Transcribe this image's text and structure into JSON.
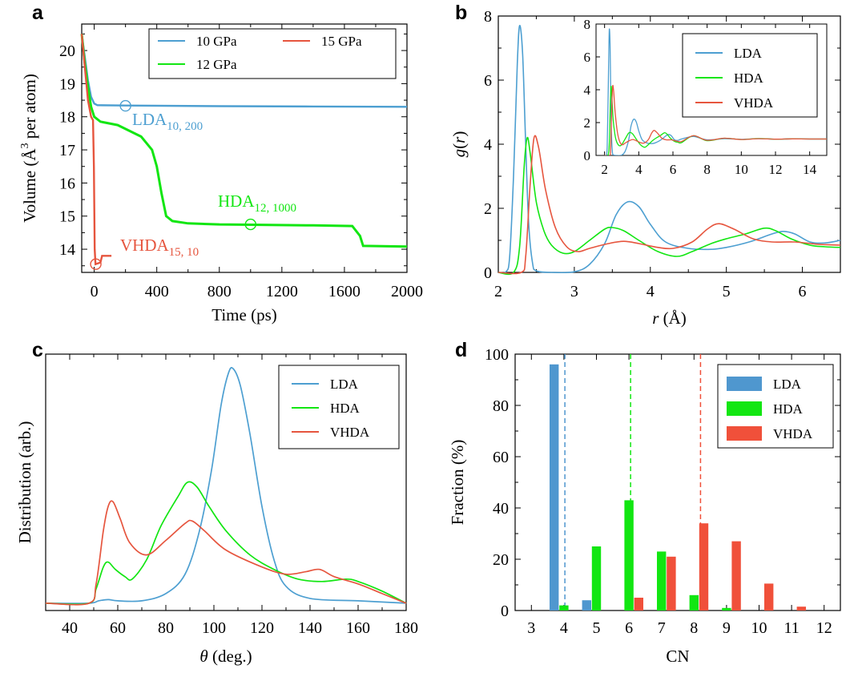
{
  "colors": {
    "blue": "#4d9fd1",
    "green": "#12e612",
    "red": "#e6553e",
    "red_bar": "#f0503a",
    "blue_bar": "#4f97cf"
  },
  "panels": {
    "a": {
      "letter": "a"
    },
    "b": {
      "letter": "b"
    },
    "c": {
      "letter": "c"
    },
    "d": {
      "letter": "d"
    }
  },
  "chart_data": [
    {
      "panel": "a",
      "type": "line",
      "xlabel": "Time (ps)",
      "ylabel_main": "Volume (Å",
      "ylabel_sup": "3",
      "ylabel_tail": " per atom)",
      "xlim": [
        -80,
        2000
      ],
      "ylim": [
        13.3,
        20.8
      ],
      "xticks": [
        0,
        400,
        800,
        1200,
        1600,
        2000
      ],
      "yticks": [
        14,
        15,
        16,
        17,
        18,
        19,
        20
      ],
      "legend": {
        "placement": "top-right",
        "columns": 2
      },
      "series": [
        {
          "name": "10 GPa",
          "color": "blue",
          "points": [
            [
              -80,
              20.5
            ],
            [
              -60,
              19.8
            ],
            [
              -40,
              19.1
            ],
            [
              -20,
              18.6
            ],
            [
              0,
              18.4
            ],
            [
              20,
              18.35
            ],
            [
              200,
              18.34
            ],
            [
              800,
              18.32
            ],
            [
              1400,
              18.31
            ],
            [
              2000,
              18.3
            ]
          ]
        },
        {
          "name": "12 GPa",
          "color": "green",
          "points": [
            [
              -80,
              20.5
            ],
            [
              -60,
              19.6
            ],
            [
              -40,
              18.9
            ],
            [
              -20,
              18.3
            ],
            [
              0,
              18.0
            ],
            [
              40,
              17.85
            ],
            [
              150,
              17.75
            ],
            [
              300,
              17.4
            ],
            [
              370,
              17.0
            ],
            [
              400,
              16.5
            ],
            [
              430,
              15.7
            ],
            [
              460,
              15.0
            ],
            [
              500,
              14.85
            ],
            [
              600,
              14.78
            ],
            [
              800,
              14.75
            ],
            [
              1000,
              14.74
            ],
            [
              1400,
              14.72
            ],
            [
              1650,
              14.7
            ],
            [
              1700,
              14.4
            ],
            [
              1720,
              14.1
            ],
            [
              2000,
              14.08
            ]
          ]
        },
        {
          "name": "15 GPa",
          "color": "red",
          "points": [
            [
              -80,
              20.5
            ],
            [
              -60,
              19.5
            ],
            [
              -40,
              18.5
            ],
            [
              -20,
              18.0
            ],
            [
              -8,
              17.9
            ],
            [
              -2,
              16.5
            ],
            [
              3,
              14.0
            ],
            [
              8,
              13.55
            ],
            [
              40,
              13.6
            ],
            [
              50,
              13.8
            ],
            [
              110,
              13.8
            ]
          ]
        }
      ],
      "annotations": [
        {
          "label": "LDA",
          "sub": "10, 200",
          "color": "blue",
          "x": 200,
          "y": 18.33
        },
        {
          "label": "HDA",
          "sub": "12, 1000",
          "color": "green",
          "x": 1000,
          "y": 14.75
        },
        {
          "label": "VHDA",
          "sub": "15, 10",
          "color": "red",
          "x": 10,
          "y": 13.55
        }
      ]
    },
    {
      "panel": "b",
      "type": "line",
      "xlabel_italic": "r",
      "xlabel_tail": " (Å)",
      "ylabel_italic": "g",
      "ylabel_paren_open": "(",
      "ylabel_italic_r": "r",
      "ylabel_paren_close": ")",
      "xlim": [
        2.0,
        6.5
      ],
      "ylim": [
        0,
        8
      ],
      "xticks": [
        2,
        3,
        4,
        5,
        6
      ],
      "yticks": [
        0,
        2,
        4,
        6,
        8
      ],
      "legend": {
        "placement": "top-right (inside inset)"
      },
      "series": [
        {
          "name": "LDA",
          "color": "blue",
          "points": [
            [
              2.0,
              0
            ],
            [
              2.1,
              0.02
            ],
            [
              2.15,
              0.5
            ],
            [
              2.2,
              3.0
            ],
            [
              2.25,
              6.5
            ],
            [
              2.28,
              7.7
            ],
            [
              2.32,
              6.8
            ],
            [
              2.36,
              4.0
            ],
            [
              2.4,
              1.5
            ],
            [
              2.45,
              0.3
            ],
            [
              2.5,
              0.05
            ],
            [
              2.7,
              0.0
            ],
            [
              3.0,
              0.02
            ],
            [
              3.2,
              0.25
            ],
            [
              3.4,
              0.9
            ],
            [
              3.55,
              1.8
            ],
            [
              3.7,
              2.2
            ],
            [
              3.85,
              2.05
            ],
            [
              4.0,
              1.5
            ],
            [
              4.2,
              0.95
            ],
            [
              4.5,
              0.75
            ],
            [
              4.8,
              0.72
            ],
            [
              5.0,
              0.78
            ],
            [
              5.3,
              0.95
            ],
            [
              5.6,
              1.2
            ],
            [
              5.75,
              1.28
            ],
            [
              5.9,
              1.2
            ],
            [
              6.1,
              0.95
            ],
            [
              6.3,
              0.92
            ],
            [
              6.5,
              1.0
            ]
          ]
        },
        {
          "name": "HDA",
          "color": "green",
          "points": [
            [
              2.0,
              0
            ],
            [
              2.2,
              0.0
            ],
            [
              2.28,
              0.8
            ],
            [
              2.34,
              3.3
            ],
            [
              2.38,
              4.2
            ],
            [
              2.42,
              3.7
            ],
            [
              2.5,
              2.2
            ],
            [
              2.6,
              1.3
            ],
            [
              2.7,
              0.85
            ],
            [
              2.85,
              0.6
            ],
            [
              3.0,
              0.65
            ],
            [
              3.2,
              1.0
            ],
            [
              3.4,
              1.35
            ],
            [
              3.5,
              1.4
            ],
            [
              3.65,
              1.3
            ],
            [
              3.85,
              1.0
            ],
            [
              4.1,
              0.65
            ],
            [
              4.35,
              0.5
            ],
            [
              4.55,
              0.65
            ],
            [
              4.8,
              0.9
            ],
            [
              5.0,
              1.05
            ],
            [
              5.25,
              1.2
            ],
            [
              5.5,
              1.38
            ],
            [
              5.65,
              1.3
            ],
            [
              5.85,
              1.05
            ],
            [
              6.1,
              0.85
            ],
            [
              6.3,
              0.8
            ],
            [
              6.5,
              0.78
            ]
          ]
        },
        {
          "name": "VHDA",
          "color": "red",
          "points": [
            [
              2.0,
              0
            ],
            [
              2.3,
              0.0
            ],
            [
              2.36,
              0.5
            ],
            [
              2.42,
              2.8
            ],
            [
              2.47,
              4.2
            ],
            [
              2.53,
              3.9
            ],
            [
              2.62,
              2.6
            ],
            [
              2.75,
              1.4
            ],
            [
              2.9,
              0.8
            ],
            [
              3.05,
              0.65
            ],
            [
              3.2,
              0.75
            ],
            [
              3.45,
              0.9
            ],
            [
              3.65,
              0.97
            ],
            [
              3.85,
              0.9
            ],
            [
              4.1,
              0.78
            ],
            [
              4.3,
              0.75
            ],
            [
              4.55,
              0.95
            ],
            [
              4.75,
              1.35
            ],
            [
              4.9,
              1.52
            ],
            [
              5.1,
              1.35
            ],
            [
              5.35,
              1.05
            ],
            [
              5.6,
              0.95
            ],
            [
              5.9,
              0.95
            ],
            [
              6.2,
              0.88
            ],
            [
              6.5,
              0.85
            ]
          ]
        }
      ],
      "inset": {
        "xlim": [
          1.5,
          15.0
        ],
        "ylim": [
          0,
          8
        ],
        "xticks": [
          2,
          4,
          6,
          8,
          10,
          12,
          14
        ],
        "yticks": [
          0,
          2,
          4,
          6,
          8
        ]
      }
    },
    {
      "panel": "c",
      "type": "line",
      "xlabel_italic": "θ",
      "xlabel_tail": " (deg.)",
      "ylabel": "Distribution (arb.)",
      "xlim": [
        30,
        180
      ],
      "ylim": [
        0,
        1
      ],
      "xticks": [
        40,
        60,
        80,
        100,
        120,
        140,
        160,
        180
      ],
      "legend": {
        "placement": "top-right"
      },
      "series": [
        {
          "name": "LDA",
          "color": "blue",
          "points": [
            [
              30,
              0
            ],
            [
              48,
              0
            ],
            [
              52,
              0.01
            ],
            [
              56,
              0.015
            ],
            [
              60,
              0.01
            ],
            [
              70,
              0.01
            ],
            [
              80,
              0.04
            ],
            [
              88,
              0.12
            ],
            [
              94,
              0.3
            ],
            [
              99,
              0.55
            ],
            [
              103,
              0.82
            ],
            [
              106,
              0.95
            ],
            [
              108,
              0.97
            ],
            [
              111,
              0.9
            ],
            [
              115,
              0.7
            ],
            [
              120,
              0.4
            ],
            [
              125,
              0.18
            ],
            [
              130,
              0.07
            ],
            [
              140,
              0.02
            ],
            [
              160,
              0.01
            ],
            [
              180,
              0.0
            ]
          ]
        },
        {
          "name": "HDA",
          "color": "green",
          "points": [
            [
              30,
              0
            ],
            [
              48,
              0
            ],
            [
              51,
              0.06
            ],
            [
              54,
              0.15
            ],
            [
              56,
              0.17
            ],
            [
              59,
              0.14
            ],
            [
              63,
              0.11
            ],
            [
              66,
              0.1
            ],
            [
              72,
              0.18
            ],
            [
              78,
              0.32
            ],
            [
              85,
              0.44
            ],
            [
              89,
              0.5
            ],
            [
              93,
              0.48
            ],
            [
              98,
              0.4
            ],
            [
              105,
              0.3
            ],
            [
              115,
              0.2
            ],
            [
              125,
              0.14
            ],
            [
              135,
              0.1
            ],
            [
              145,
              0.09
            ],
            [
              155,
              0.1
            ],
            [
              160,
              0.09
            ],
            [
              170,
              0.05
            ],
            [
              180,
              0.0
            ]
          ]
        },
        {
          "name": "VHDA",
          "color": "red",
          "points": [
            [
              30,
              0
            ],
            [
              48,
              0
            ],
            [
              51,
              0.08
            ],
            [
              54,
              0.3
            ],
            [
              56,
              0.4
            ],
            [
              58,
              0.42
            ],
            [
              61,
              0.35
            ],
            [
              65,
              0.25
            ],
            [
              72,
              0.2
            ],
            [
              80,
              0.26
            ],
            [
              88,
              0.33
            ],
            [
              91,
              0.34
            ],
            [
              96,
              0.3
            ],
            [
              105,
              0.22
            ],
            [
              120,
              0.15
            ],
            [
              130,
              0.12
            ],
            [
              138,
              0.13
            ],
            [
              144,
              0.14
            ],
            [
              150,
              0.11
            ],
            [
              160,
              0.08
            ],
            [
              170,
              0.04
            ],
            [
              180,
              0.0
            ]
          ]
        }
      ]
    },
    {
      "panel": "d",
      "type": "bar",
      "xlabel": "CN",
      "ylabel": "Fraction (%)",
      "xlim": [
        2.5,
        12.5
      ],
      "ylim": [
        0,
        100
      ],
      "xticks": [
        3,
        4,
        5,
        6,
        7,
        8,
        9,
        10,
        11,
        12
      ],
      "yticks": [
        0,
        20,
        40,
        60,
        80,
        100
      ],
      "legend": {
        "placement": "top-right"
      },
      "categories": [
        3,
        4,
        5,
        6,
        7,
        8,
        9,
        10,
        11,
        12
      ],
      "series": [
        {
          "name": "LDA",
          "color": "blue_bar",
          "values": [
            0,
            96,
            4,
            0,
            0,
            0,
            0,
            0,
            0,
            0
          ],
          "mean": 4.03
        },
        {
          "name": "HDA",
          "color": "green",
          "values": [
            0,
            2,
            25,
            43,
            23,
            6,
            1,
            0,
            0,
            0
          ],
          "mean": 6.05
        },
        {
          "name": "VHDA",
          "color": "red_bar",
          "values": [
            0,
            0,
            0,
            5,
            21,
            34,
            27,
            10.5,
            1.5,
            0
          ],
          "mean": 8.2
        }
      ]
    }
  ]
}
